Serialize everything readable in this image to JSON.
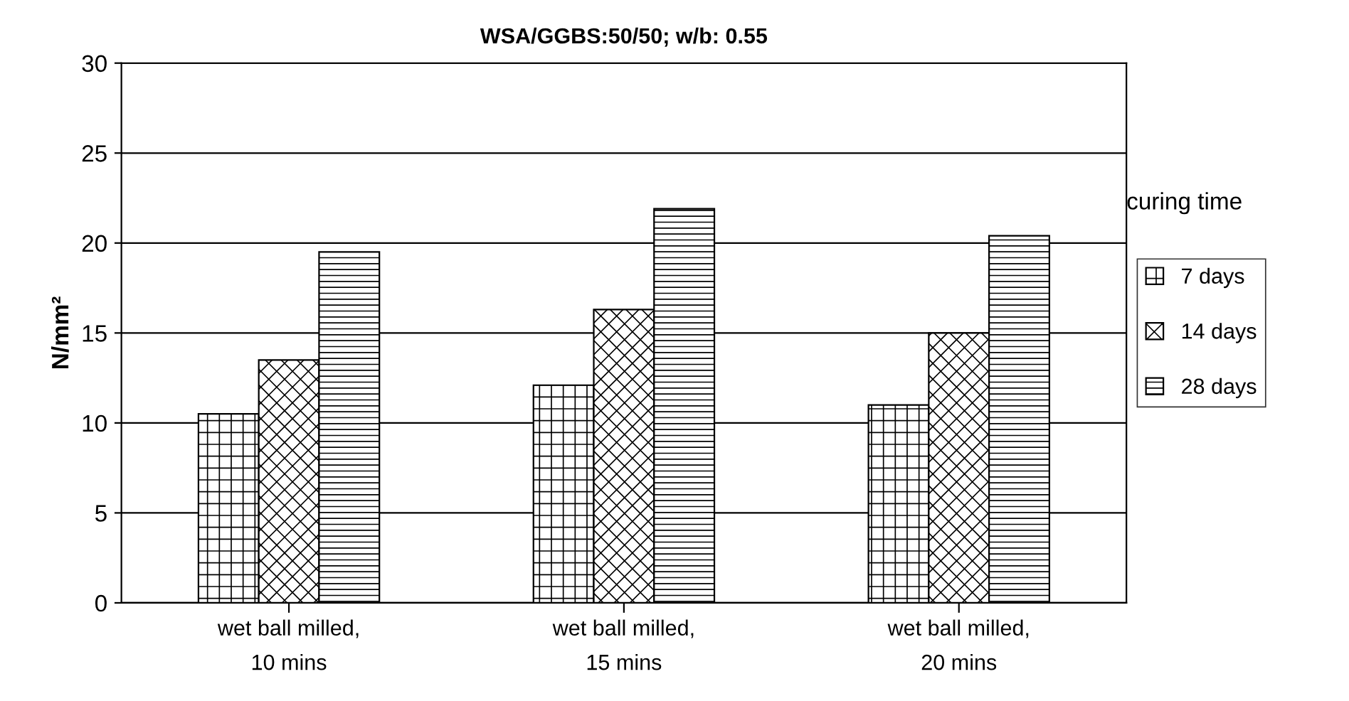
{
  "chart_data": {
    "type": "bar",
    "title": "WSA/GGBS:50/50; w/b: 0.55",
    "ylabel": "N/mm²",
    "legend_title": "curing time",
    "categories": [
      "wet ball milled,\n10 mins",
      "wet ball milled,\n15 mins",
      "wet ball milled,\n20 mins"
    ],
    "series": [
      {
        "name": "7 days",
        "color": "#000000",
        "values": [
          10.5,
          12.1,
          11.0
        ]
      },
      {
        "name": "14 days",
        "color": "#000000",
        "values": [
          13.5,
          16.3,
          15.0
        ]
      },
      {
        "name": "28 days",
        "color": "#000000",
        "values": [
          19.5,
          21.9,
          20.4
        ]
      }
    ],
    "ylim": [
      0,
      30
    ],
    "yticks": [
      0,
      5,
      10,
      15,
      20,
      25,
      30
    ],
    "grid": "y",
    "legend": "right"
  }
}
